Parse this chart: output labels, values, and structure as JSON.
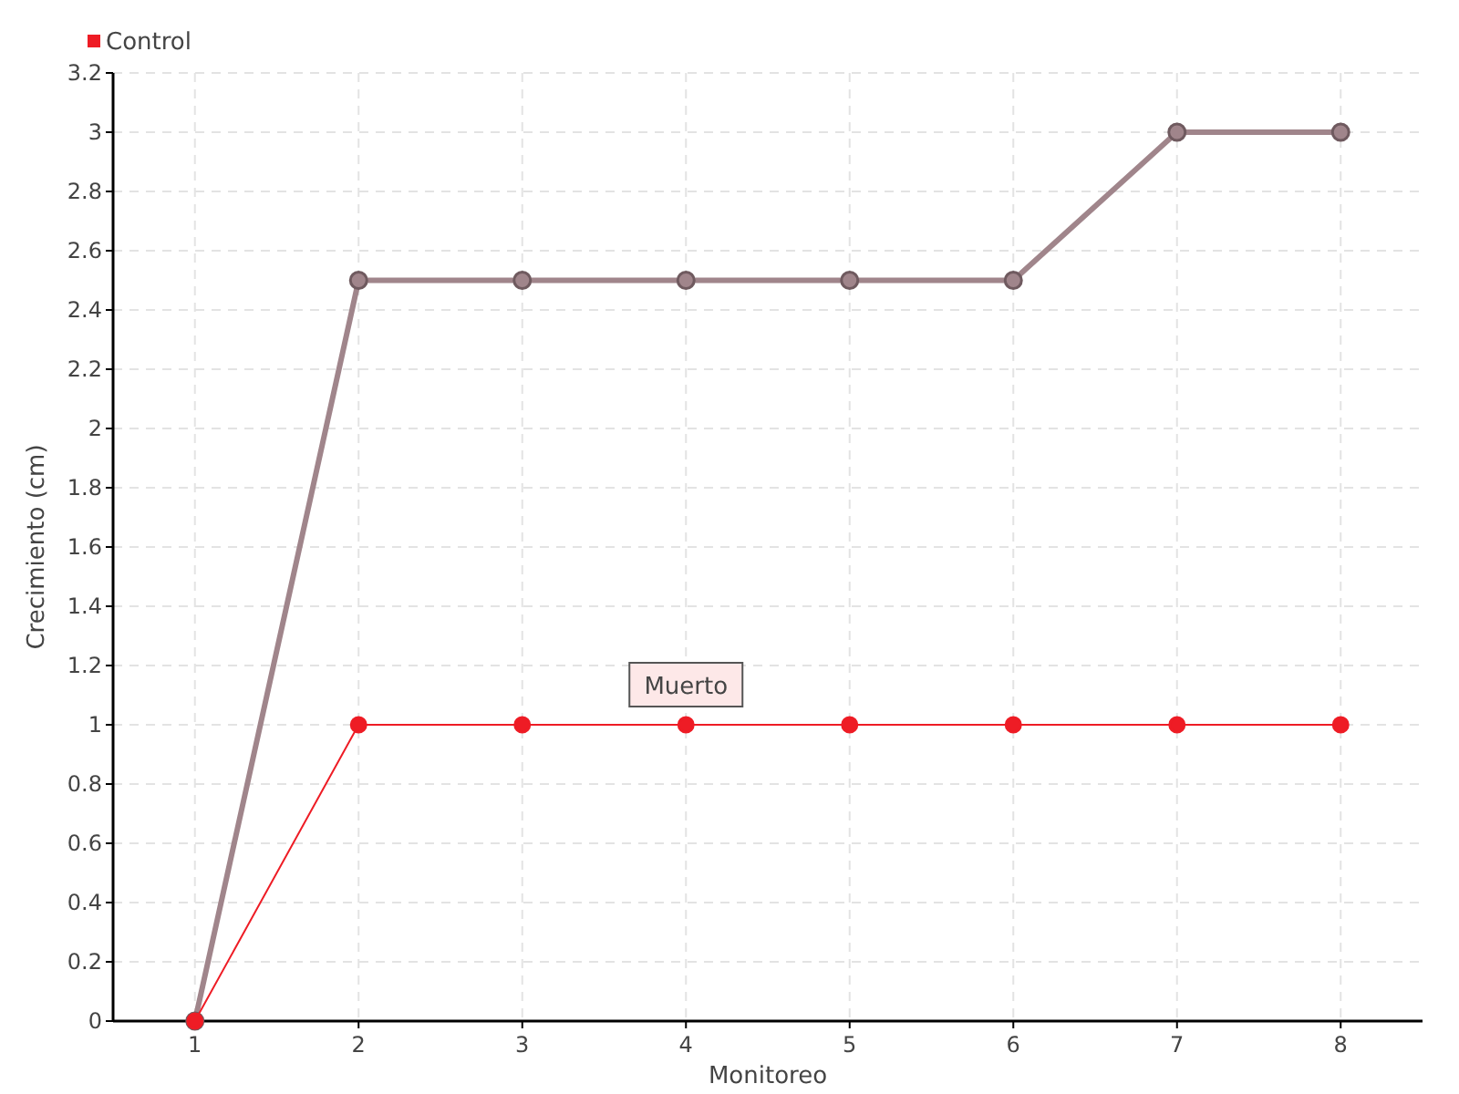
{
  "chart_data": {
    "type": "line",
    "xlabel": "Monitoreo",
    "ylabel": "Crecimiento (cm)",
    "categories": [
      "1",
      "2",
      "3",
      "4",
      "5",
      "6",
      "7",
      "8"
    ],
    "series": [
      {
        "color": "#a0858b",
        "values": [
          0,
          2.5,
          2.5,
          2.5,
          2.5,
          2.5,
          3,
          3
        ]
      },
      {
        "name": "Control",
        "color": "#ee1c25",
        "values": [
          0,
          1,
          1,
          1,
          1,
          1,
          1,
          1
        ]
      }
    ],
    "ylim": [
      0,
      3.2
    ],
    "yticks": [
      0,
      0.2,
      0.4,
      0.6,
      0.8,
      1,
      1.2,
      1.4,
      1.6,
      1.8,
      2,
      2.2,
      2.4,
      2.6,
      2.8,
      3,
      3.2
    ],
    "grid": true,
    "legend": "top left",
    "marker": "circle",
    "annotations": [
      {
        "text": "Muerto",
        "x": "4",
        "y": 1
      }
    ]
  }
}
